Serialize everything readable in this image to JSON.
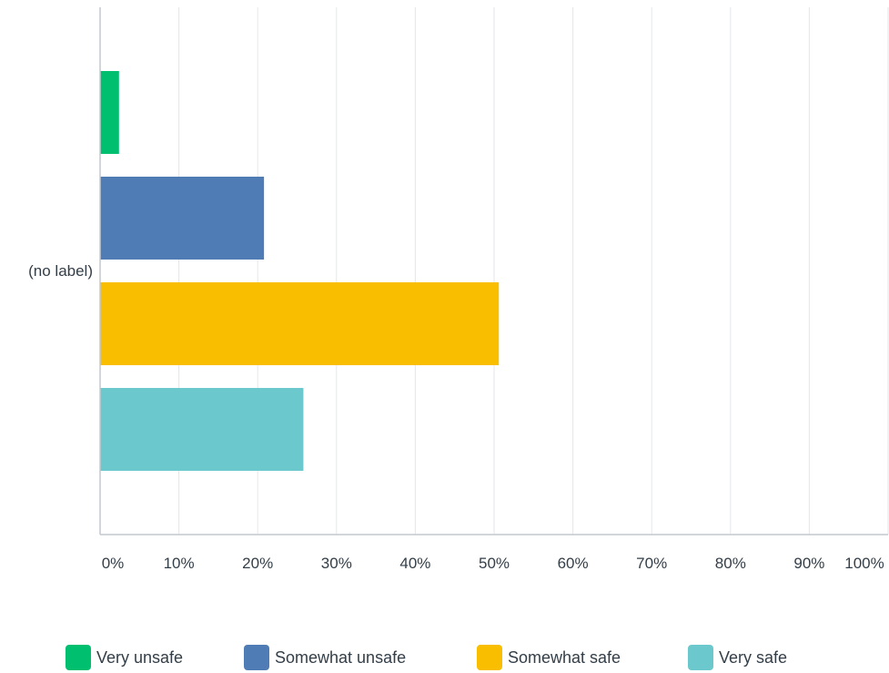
{
  "chart_data": {
    "type": "bar",
    "orientation": "horizontal",
    "categories": [
      "(no label)"
    ],
    "series": [
      {
        "name": "Very unsafe",
        "values": [
          2.4
        ],
        "color": "#00bf6f"
      },
      {
        "name": "Somewhat unsafe",
        "values": [
          20.8
        ],
        "color": "#507cb6"
      },
      {
        "name": "Somewhat safe",
        "values": [
          50.6
        ],
        "color": "#f9be00"
      },
      {
        "name": "Very safe",
        "values": [
          25.8
        ],
        "color": "#6bc8cd"
      }
    ],
    "xlim": [
      0,
      100
    ],
    "xticks": [
      "0%",
      "10%",
      "20%",
      "30%",
      "40%",
      "50%",
      "60%",
      "70%",
      "80%",
      "90%",
      "100%"
    ],
    "grid": true,
    "legend_position": "bottom",
    "title": "",
    "xlabel": "",
    "ylabel": ""
  }
}
